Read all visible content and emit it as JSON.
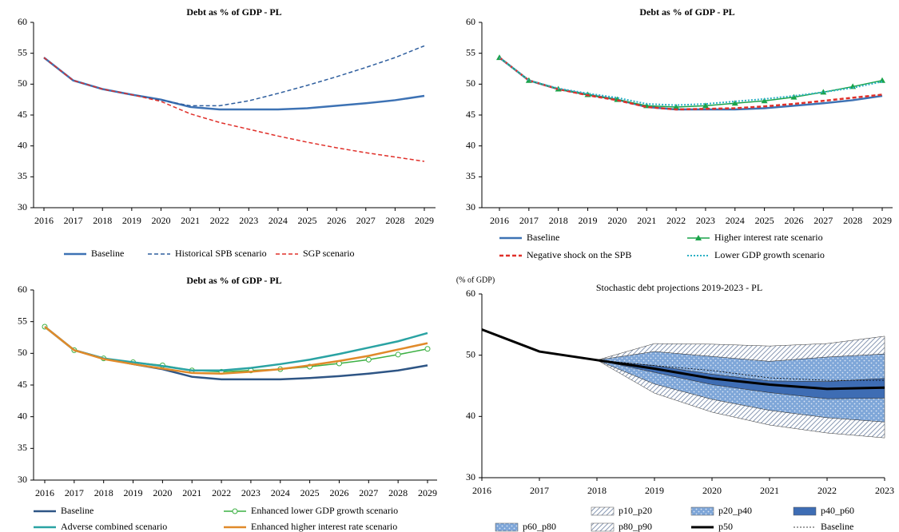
{
  "chart_data": [
    {
      "type": "line",
      "title": "Debt as % of GDP - PL",
      "categories": [
        "2016",
        "2017",
        "2018",
        "2019",
        "2020",
        "2021",
        "2022",
        "2023",
        "2024",
        "2025",
        "2026",
        "2027",
        "2028",
        "2029"
      ],
      "ylim": [
        30,
        60
      ],
      "yticks": [
        30,
        35,
        40,
        45,
        50,
        55,
        60
      ],
      "series": [
        {
          "name": "Baseline",
          "color": "#3d72b4",
          "dash": "solid",
          "width": 2.5,
          "values": [
            54.3,
            50.6,
            49.2,
            48.3,
            47.5,
            46.3,
            45.9,
            45.9,
            45.9,
            46.1,
            46.5,
            46.9,
            47.4,
            48.1
          ]
        },
        {
          "name": "Historical SPB scenario",
          "color": "#2e5e9e",
          "dash": "dashed",
          "width": 1.5,
          "values": [
            54.3,
            50.6,
            49.2,
            48.3,
            47.4,
            46.5,
            46.5,
            47.3,
            48.5,
            49.8,
            51.2,
            52.7,
            54.3,
            56.2
          ]
        },
        {
          "name": "SGP scenario",
          "color": "#e0302a",
          "dash": "dashed",
          "width": 1.5,
          "values": [
            54.3,
            50.6,
            49.2,
            48.3,
            47.2,
            45.2,
            43.8,
            42.7,
            41.6,
            40.6,
            39.7,
            38.9,
            38.2,
            37.5
          ]
        }
      ]
    },
    {
      "type": "line",
      "title": "Debt as % of GDP - PL",
      "categories": [
        "2016",
        "2017",
        "2018",
        "2019",
        "2020",
        "2021",
        "2022",
        "2023",
        "2024",
        "2025",
        "2026",
        "2027",
        "2028",
        "2029"
      ],
      "ylim": [
        30,
        60
      ],
      "yticks": [
        30,
        35,
        40,
        45,
        50,
        55,
        60
      ],
      "series": [
        {
          "name": "Baseline",
          "color": "#3d72b4",
          "dash": "solid",
          "width": 2.5,
          "values": [
            54.3,
            50.6,
            49.2,
            48.3,
            47.5,
            46.3,
            45.9,
            45.9,
            45.9,
            46.1,
            46.5,
            46.9,
            47.4,
            48.1
          ]
        },
        {
          "name": "Higher interest rate scenario",
          "color": "#1aa34a",
          "dash": "solid",
          "width": 1.5,
          "marker": "triangle",
          "values": [
            54.3,
            50.6,
            49.2,
            48.3,
            47.5,
            46.5,
            46.3,
            46.5,
            46.9,
            47.3,
            47.9,
            48.7,
            49.6,
            50.6
          ]
        },
        {
          "name": "Negative shock on the SPB",
          "color": "#e0302a",
          "dash": "dashed",
          "width": 2.5,
          "values": [
            54.3,
            50.6,
            49.2,
            48.2,
            47.4,
            46.3,
            45.9,
            46.0,
            46.1,
            46.4,
            46.8,
            47.3,
            47.8,
            48.3
          ]
        },
        {
          "name": "Lower GDP growth scenario",
          "color": "#2ab0c4",
          "dash": "dotted",
          "width": 2,
          "values": [
            54.3,
            50.6,
            49.3,
            48.5,
            47.8,
            46.8,
            46.6,
            46.8,
            47.2,
            47.6,
            48.1,
            48.7,
            49.4,
            50.4
          ]
        }
      ]
    },
    {
      "type": "line",
      "title": "Debt as % of GDP - PL",
      "categories": [
        "2016",
        "2017",
        "2018",
        "2019",
        "2020",
        "2021",
        "2022",
        "2023",
        "2024",
        "2025",
        "2026",
        "2027",
        "2028",
        "2029"
      ],
      "ylim": [
        30,
        60
      ],
      "yticks": [
        30,
        35,
        40,
        45,
        50,
        55,
        60
      ],
      "series": [
        {
          "name": "Baseline",
          "color": "#2e5585",
          "dash": "solid",
          "width": 2.5,
          "values": [
            54.2,
            50.5,
            49.2,
            48.3,
            47.5,
            46.3,
            45.9,
            45.9,
            45.9,
            46.1,
            46.4,
            46.8,
            47.3,
            48.1
          ]
        },
        {
          "name": "Enhanced lower GDP growth scenario",
          "color": "#3cb043",
          "dash": "solid",
          "width": 1.5,
          "marker": "circle",
          "values": [
            54.2,
            50.5,
            49.2,
            48.6,
            48.1,
            47.3,
            47.1,
            47.3,
            47.5,
            47.9,
            48.4,
            49.0,
            49.8,
            50.7
          ]
        },
        {
          "name": "Adverse combined scenario",
          "color": "#2aa3a3",
          "dash": "solid",
          "width": 2.5,
          "values": [
            54.2,
            50.5,
            49.2,
            48.6,
            48.0,
            47.3,
            47.3,
            47.7,
            48.3,
            49.0,
            49.9,
            50.9,
            51.9,
            53.2
          ]
        },
        {
          "name": "Enhanced higher interest rate scenario",
          "color": "#e08a2a",
          "dash": "solid",
          "width": 2.5,
          "values": [
            54.2,
            50.5,
            49.1,
            48.3,
            47.6,
            46.9,
            46.8,
            47.1,
            47.5,
            48.1,
            48.8,
            49.6,
            50.6,
            51.6
          ]
        }
      ]
    },
    {
      "type": "fan",
      "title": "Stochastic debt projections  2019-2023 - PL",
      "y_label": "(% of GDP)",
      "x": [
        2016,
        2017,
        2018,
        2019,
        2020,
        2021,
        2022,
        2023
      ],
      "xlim": [
        2016,
        2023
      ],
      "xticks": [
        2016,
        2017,
        2018,
        2019,
        2020,
        2021,
        2022,
        2023
      ],
      "ylim": [
        30,
        60
      ],
      "yticks": [
        30,
        40,
        50,
        60
      ],
      "band_x": [
        2018,
        2019,
        2020,
        2021,
        2022,
        2023
      ],
      "bands": [
        {
          "name": "p10_p20",
          "color": "#8a9ab4",
          "pattern": "hatch",
          "lower": [
            49.2,
            43.8,
            40.7,
            38.6,
            37.3,
            36.5
          ],
          "upper": [
            49.2,
            45.3,
            42.8,
            41.0,
            39.8,
            39.1
          ]
        },
        {
          "name": "p20_p40",
          "color": "#7ea6d8",
          "pattern": "dots",
          "lower": [
            49.2,
            45.3,
            42.8,
            41.0,
            39.8,
            39.1
          ],
          "upper": [
            49.2,
            47.2,
            45.2,
            43.9,
            42.9,
            43.0
          ]
        },
        {
          "name": "p40_p60",
          "color": "#3e6db4",
          "pattern": "solid",
          "lower": [
            49.2,
            47.2,
            45.2,
            43.9,
            42.9,
            43.0
          ],
          "upper": [
            49.2,
            48.3,
            46.9,
            45.8,
            45.7,
            46.2
          ]
        },
        {
          "name": "p60_p80",
          "color": "#7ea6d8",
          "pattern": "dots",
          "lower": [
            49.2,
            48.3,
            46.9,
            45.8,
            45.7,
            46.2
          ],
          "upper": [
            49.2,
            50.6,
            49.8,
            49.0,
            49.7,
            50.2
          ]
        },
        {
          "name": "p80_p90",
          "color": "#8a9ab4",
          "pattern": "hatch",
          "lower": [
            49.2,
            50.6,
            49.8,
            49.0,
            49.7,
            50.2
          ],
          "upper": [
            49.2,
            51.9,
            51.8,
            51.5,
            51.9,
            53.1
          ]
        }
      ],
      "series": [
        {
          "name": "p50",
          "color": "#000000",
          "dash": "solid",
          "width": 3,
          "values": [
            54.2,
            50.6,
            49.2,
            47.8,
            46.2,
            45.2,
            44.5,
            44.7
          ]
        },
        {
          "name": "Baseline",
          "color": "#000000",
          "dash": "dotted",
          "width": 0.8,
          "values": [
            54.2,
            50.6,
            49.2,
            48.3,
            47.5,
            46.3,
            45.9,
            45.9
          ]
        }
      ]
    }
  ]
}
